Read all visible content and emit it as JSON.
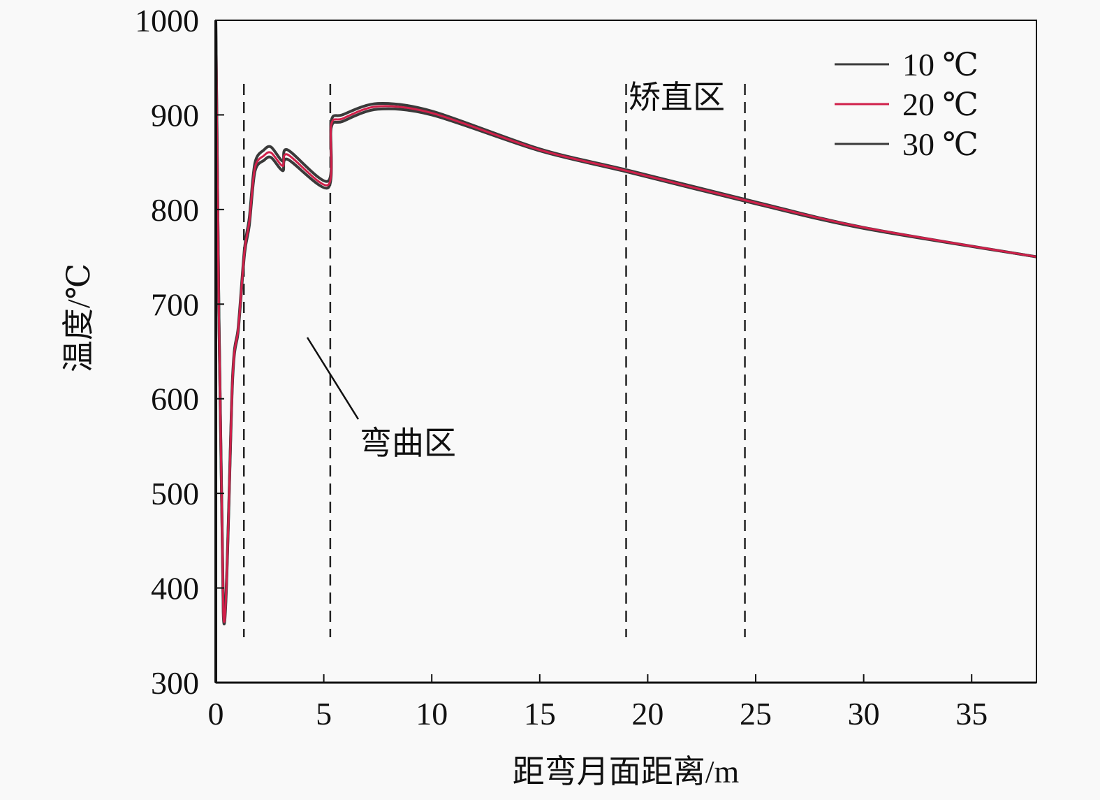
{
  "chart_data": {
    "type": "line",
    "title": "",
    "xlabel": "距弯月面距离/m",
    "ylabel": "温度/℃",
    "xlim": [
      0,
      38
    ],
    "ylim": [
      300,
      1000
    ],
    "xticks": [
      0,
      5,
      10,
      15,
      20,
      25,
      30,
      35
    ],
    "yticks": [
      300,
      400,
      500,
      600,
      700,
      800,
      900,
      1000
    ],
    "grid": false,
    "legend_position": "top-right",
    "x": [
      0,
      0.35,
      0.78,
      1.04,
      1.33,
      1.55,
      1.81,
      2.23,
      2.56,
      3.1,
      3.33,
      5.2,
      5.34,
      5.86,
      7.5,
      10,
      15,
      19,
      25,
      30,
      38
    ],
    "series": [
      {
        "name": "10 ℃",
        "color": "#3a3a3a",
        "values": [
          1000,
          374,
          625,
          676,
          759,
          791,
          849,
          863,
          866,
          851,
          863,
          830,
          893,
          900,
          912,
          904,
          864,
          842,
          808,
          781,
          750
        ]
      },
      {
        "name": "20 ℃",
        "color": "#d0204a",
        "values": [
          1000,
          372,
          623,
          674,
          756,
          787,
          844,
          857,
          860,
          846,
          858,
          826,
          889,
          896,
          909,
          902,
          863,
          841,
          807,
          781,
          750
        ]
      },
      {
        "name": "30 ℃",
        "color": "#3a3a3a",
        "values": [
          1000,
          370,
          621,
          672,
          753,
          783,
          840,
          852,
          855,
          841,
          853,
          823,
          886,
          893,
          906,
          900,
          862,
          840,
          806,
          780,
          750
        ]
      }
    ],
    "reference_lines_x": [
      1.3,
      5.3,
      19,
      24.5
    ],
    "annotations": {
      "bending_zone": "弯曲区",
      "straightening_zone": "矫直区"
    }
  }
}
